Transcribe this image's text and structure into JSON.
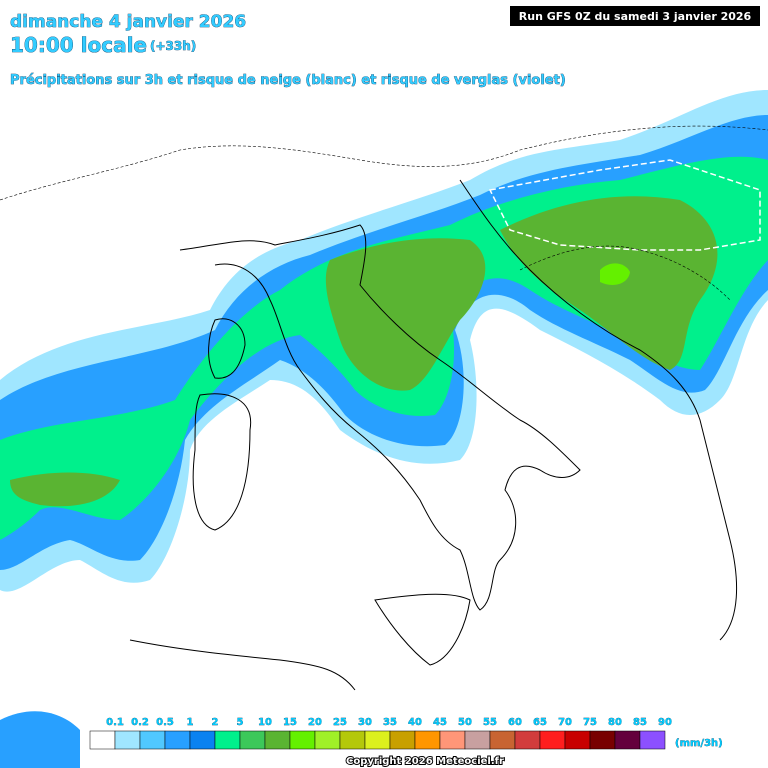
{
  "header": {
    "date": "dimanche 4 janvier 2026",
    "time": "10:00 locale",
    "lead": "(+33h)",
    "description": "Précipitations sur 3h et risque de neige (blanc) et risque de verglas (violet)",
    "run": "Run GFS 0Z du samedi 3 janvier 2026"
  },
  "legend": {
    "unit": "(mm/3h)",
    "items": [
      {
        "label": "0.1",
        "color": "#ffffff"
      },
      {
        "label": "0.2",
        "color": "#a0e6ff"
      },
      {
        "label": "0.5",
        "color": "#50c8ff"
      },
      {
        "label": "1",
        "color": "#28a0ff"
      },
      {
        "label": "2",
        "color": "#0a82f0"
      },
      {
        "label": "5",
        "color": "#00f08c"
      },
      {
        "label": "10",
        "color": "#3cc85a"
      },
      {
        "label": "15",
        "color": "#5ab432"
      },
      {
        "label": "20",
        "color": "#64f000"
      },
      {
        "label": "25",
        "color": "#a0f028"
      },
      {
        "label": "30",
        "color": "#b4c80a"
      },
      {
        "label": "35",
        "color": "#dcf01e"
      },
      {
        "label": "40",
        "color": "#c8a000"
      },
      {
        "label": "45",
        "color": "#ff9600"
      },
      {
        "label": "50",
        "color": "#ff9678"
      },
      {
        "label": "55",
        "color": "#c8a0a0"
      },
      {
        "label": "60",
        "color": "#c86432"
      },
      {
        "label": "65",
        "color": "#d23c3c"
      },
      {
        "label": "70",
        "color": "#ff1e1e"
      },
      {
        "label": "75",
        "color": "#c80000"
      },
      {
        "label": "80",
        "color": "#780000"
      },
      {
        "label": "85",
        "color": "#64003c"
      },
      {
        "label": "90",
        "color": "#8c50ff"
      }
    ],
    "last_color": "#ff50ff"
  },
  "copyright": "Copyright 2026 Meteociel.fr"
}
